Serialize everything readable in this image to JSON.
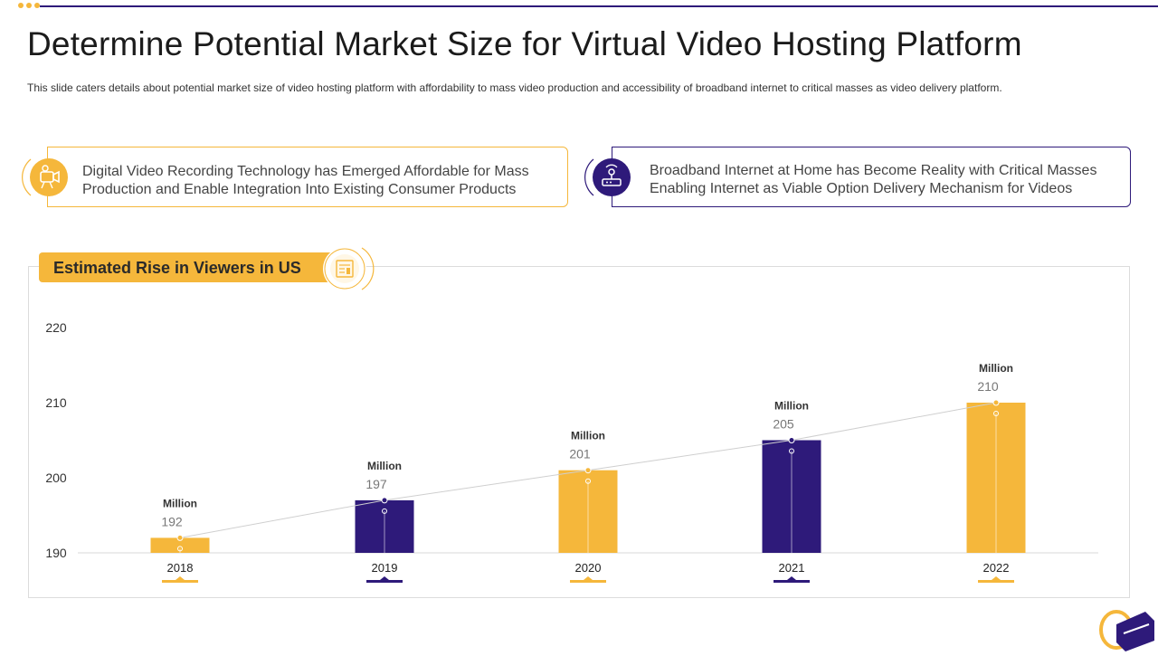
{
  "header": {
    "title": "Determine Potential Market Size for Virtual Video Hosting Platform",
    "subtitle": "This slide caters details about potential market size of video  hosting platform with affordability  to mass video  production  and accessibility of broadband  internet to critical masses as video delivery  platform."
  },
  "cards": [
    {
      "icon": "video-camera-icon",
      "line1": "Digital Video Recording Technology  has Emerged Affordable for Mass",
      "line2": "Production and Enable Integration Into  Existing Consumer Products"
    },
    {
      "icon": "router-icon",
      "line1": "Broadband Internet  at Home has Become Reality with Critical Masses",
      "line2": "Enabling Internet  as Viable Option Delivery Mechanism for Videos"
    }
  ],
  "chart": {
    "banner_title": "Estimated Rise in Viewers in US",
    "banner_icon": "report-icon"
  },
  "colors": {
    "accent": "#f5b73b",
    "primary": "#2e1a7a"
  },
  "chart_data": {
    "type": "bar",
    "title": "Estimated Rise in Viewers in US",
    "categories": [
      "2018",
      "2019",
      "2020",
      "2021",
      "2022"
    ],
    "values": [
      192,
      197,
      201,
      205,
      210
    ],
    "value_unit_label": "Million",
    "bar_colors": [
      "#f5b73b",
      "#2e1a7a",
      "#f5b73b",
      "#2e1a7a",
      "#f5b73b"
    ],
    "yticks": [
      190,
      200,
      210,
      220
    ],
    "ylim": [
      190,
      220
    ],
    "trend_line": true,
    "xlabel": "",
    "ylabel": ""
  }
}
